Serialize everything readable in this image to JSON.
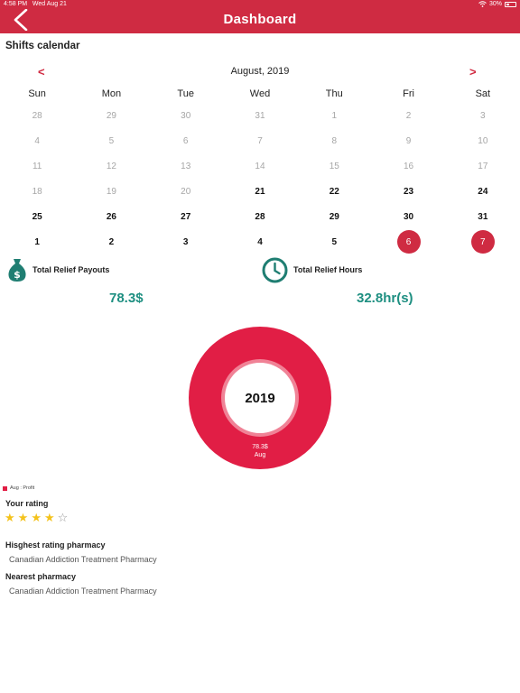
{
  "status_bar": {
    "time": "4:58 PM",
    "date": "Wed Aug 21",
    "battery": "30%"
  },
  "header": {
    "title": "Dashboard"
  },
  "calendar": {
    "section_title": "Shifts calendar",
    "prev": "<",
    "next": ">",
    "month_label": "August, 2019",
    "weekdays": [
      "Sun",
      "Mon",
      "Tue",
      "Wed",
      "Thu",
      "Fri",
      "Sat"
    ],
    "weeks": [
      [
        "28",
        "29",
        "30",
        "31",
        "1",
        "2",
        "3"
      ],
      [
        "4",
        "5",
        "6",
        "7",
        "8",
        "9",
        "10"
      ],
      [
        "11",
        "12",
        "13",
        "14",
        "15",
        "16",
        "17"
      ],
      [
        "18",
        "19",
        "20",
        "21",
        "22",
        "23",
        "24"
      ],
      [
        "25",
        "26",
        "27",
        "28",
        "29",
        "30",
        "31"
      ],
      [
        "1",
        "2",
        "3",
        "4",
        "5",
        "6",
        "7"
      ]
    ]
  },
  "stats": {
    "payouts_label": "Total Relief Payouts",
    "payouts_value": "78.3$",
    "hours_label": "Total Relief Hours",
    "hours_value": "32.8hr(s)"
  },
  "chart_data": {
    "type": "pie",
    "title": "2019",
    "categories": [
      "Aug"
    ],
    "values": [
      78.3
    ],
    "slice_label": "78.3$",
    "slice_category": "Aug",
    "legend": [
      "Aug : Profit"
    ],
    "colors": [
      "#e11e45"
    ]
  },
  "rating": {
    "title": "Your rating",
    "value": 4,
    "max": 5
  },
  "highest": {
    "title": "Hisghest rating pharmacy",
    "value": "Canadian Addiction Treatment Pharmacy"
  },
  "nearest": {
    "title": "Nearest pharmacy",
    "value": "Canadian Addiction Treatment Pharmacy"
  },
  "colors": {
    "header": "#cf2b42",
    "accent": "#1e8f81",
    "selected_day": "#cf2b42"
  }
}
